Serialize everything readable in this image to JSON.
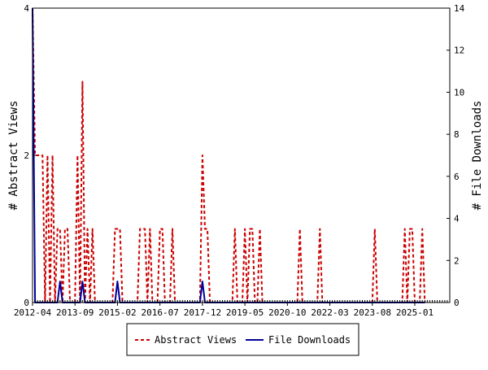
{
  "chart_data": {
    "type": "line",
    "title": "",
    "y_left_label": "# Abstract Views",
    "y_right_label": "# File Downloads",
    "y_left_ylim": [
      0,
      4
    ],
    "y_right_ylim": [
      0,
      14
    ],
    "y_left_ticks": [
      "0",
      "2",
      "4"
    ],
    "y_right_ticks": [
      "0",
      "2",
      "4",
      "6",
      "8",
      "10",
      "12",
      "14"
    ],
    "x_range": [
      "2012-04",
      "2026-03"
    ],
    "x_ticks": [
      "2012-04",
      "2013-09",
      "2015-02",
      "2016-07",
      "2017-12",
      "2019-05",
      "2020-10",
      "2022-03",
      "2023-08",
      "2025-01"
    ],
    "legend_position": "bottom",
    "series": [
      {
        "name": "Abstract Views",
        "color": "#cc0000",
        "style": "dashed",
        "axis": "left",
        "points": [
          [
            "2012-04",
            4
          ],
          [
            "2012-05",
            2
          ],
          [
            "2012-06",
            2
          ],
          [
            "2012-07",
            2
          ],
          [
            "2012-08",
            2
          ],
          [
            "2012-09",
            0
          ],
          [
            "2012-10",
            2
          ],
          [
            "2012-11",
            0
          ],
          [
            "2012-12",
            2
          ],
          [
            "2013-01",
            0
          ],
          [
            "2013-02",
            1
          ],
          [
            "2013-03",
            1
          ],
          [
            "2013-04",
            0
          ],
          [
            "2013-05",
            1
          ],
          [
            "2013-06",
            1
          ],
          [
            "2013-07",
            0
          ],
          [
            "2013-08",
            0
          ],
          [
            "2013-09",
            0
          ],
          [
            "2013-10",
            2
          ],
          [
            "2013-11",
            0
          ],
          [
            "2013-12",
            3
          ],
          [
            "2014-01",
            0
          ],
          [
            "2014-02",
            1
          ],
          [
            "2014-03",
            0
          ],
          [
            "2014-04",
            1
          ],
          [
            "2014-05",
            0
          ],
          [
            "2014-06",
            0
          ],
          [
            "2014-07",
            0
          ],
          [
            "2014-08",
            0
          ],
          [
            "2014-09",
            0
          ],
          [
            "2014-10",
            0
          ],
          [
            "2014-11",
            0
          ],
          [
            "2014-12",
            0
          ],
          [
            "2015-01",
            1
          ],
          [
            "2015-02",
            1
          ],
          [
            "2015-03",
            1
          ],
          [
            "2015-04",
            0
          ],
          [
            "2015-05",
            0
          ],
          [
            "2015-06",
            0
          ],
          [
            "2015-07",
            0
          ],
          [
            "2015-08",
            0
          ],
          [
            "2015-09",
            0
          ],
          [
            "2015-10",
            0
          ],
          [
            "2015-11",
            1
          ],
          [
            "2015-12",
            1
          ],
          [
            "2016-01",
            1
          ],
          [
            "2016-02",
            0
          ],
          [
            "2016-03",
            1
          ],
          [
            "2016-04",
            0
          ],
          [
            "2016-05",
            0
          ],
          [
            "2016-06",
            0
          ],
          [
            "2016-07",
            1
          ],
          [
            "2016-08",
            1
          ],
          [
            "2016-09",
            0
          ],
          [
            "2016-10",
            0
          ],
          [
            "2016-11",
            0
          ],
          [
            "2016-12",
            1
          ],
          [
            "2017-01",
            0
          ],
          [
            "2017-02",
            0
          ],
          [
            "2017-03",
            0
          ],
          [
            "2017-04",
            0
          ],
          [
            "2017-05",
            0
          ],
          [
            "2017-06",
            0
          ],
          [
            "2017-07",
            0
          ],
          [
            "2017-08",
            0
          ],
          [
            "2017-09",
            0
          ],
          [
            "2017-10",
            0
          ],
          [
            "2017-11",
            0
          ],
          [
            "2017-12",
            2
          ],
          [
            "2018-01",
            1
          ],
          [
            "2018-02",
            1
          ],
          [
            "2018-03",
            0
          ],
          [
            "2018-04",
            0
          ],
          [
            "2018-05",
            0
          ],
          [
            "2018-06",
            0
          ],
          [
            "2018-07",
            0
          ],
          [
            "2018-08",
            0
          ],
          [
            "2018-09",
            0
          ],
          [
            "2018-10",
            0
          ],
          [
            "2018-11",
            0
          ],
          [
            "2018-12",
            0
          ],
          [
            "2019-01",
            1
          ],
          [
            "2019-02",
            0
          ],
          [
            "2019-03",
            0
          ],
          [
            "2019-04",
            0
          ],
          [
            "2019-05",
            1
          ],
          [
            "2019-06",
            0
          ],
          [
            "2019-07",
            1
          ],
          [
            "2019-08",
            1
          ],
          [
            "2019-09",
            0
          ],
          [
            "2019-10",
            0
          ],
          [
            "2019-11",
            1
          ],
          [
            "2019-12",
            0
          ],
          [
            "2020-01",
            0
          ],
          [
            "2020-02",
            0
          ],
          [
            "2020-03",
            0
          ],
          [
            "2020-04",
            0
          ],
          [
            "2020-05",
            0
          ],
          [
            "2020-06",
            0
          ],
          [
            "2020-07",
            0
          ],
          [
            "2020-08",
            0
          ],
          [
            "2020-09",
            0
          ],
          [
            "2020-10",
            0
          ],
          [
            "2020-11",
            0
          ],
          [
            "2020-12",
            0
          ],
          [
            "2021-01",
            0
          ],
          [
            "2021-02",
            0
          ],
          [
            "2021-03",
            1
          ],
          [
            "2021-04",
            0
          ],
          [
            "2021-05",
            0
          ],
          [
            "2021-06",
            0
          ],
          [
            "2021-07",
            0
          ],
          [
            "2021-08",
            0
          ],
          [
            "2021-09",
            0
          ],
          [
            "2021-10",
            0
          ],
          [
            "2021-11",
            1
          ],
          [
            "2021-12",
            0
          ],
          [
            "2022-01",
            0
          ],
          [
            "2022-02",
            0
          ],
          [
            "2022-03",
            0
          ],
          [
            "2022-04",
            0
          ],
          [
            "2022-05",
            0
          ],
          [
            "2022-06",
            0
          ],
          [
            "2022-07",
            0
          ],
          [
            "2022-08",
            0
          ],
          [
            "2022-09",
            0
          ],
          [
            "2022-10",
            0
          ],
          [
            "2022-11",
            0
          ],
          [
            "2022-12",
            0
          ],
          [
            "2023-01",
            0
          ],
          [
            "2023-02",
            0
          ],
          [
            "2023-03",
            0
          ],
          [
            "2023-04",
            0
          ],
          [
            "2023-05",
            0
          ],
          [
            "2023-06",
            0
          ],
          [
            "2023-07",
            0
          ],
          [
            "2023-08",
            0
          ],
          [
            "2023-09",
            1
          ],
          [
            "2023-10",
            0
          ],
          [
            "2023-11",
            0
          ],
          [
            "2023-12",
            0
          ],
          [
            "2024-01",
            0
          ],
          [
            "2024-02",
            0
          ],
          [
            "2024-03",
            0
          ],
          [
            "2024-04",
            0
          ],
          [
            "2024-05",
            0
          ],
          [
            "2024-06",
            0
          ],
          [
            "2024-07",
            0
          ],
          [
            "2024-08",
            0
          ],
          [
            "2024-09",
            1
          ],
          [
            "2024-10",
            0
          ],
          [
            "2024-11",
            1
          ],
          [
            "2024-12",
            1
          ],
          [
            "2025-01",
            0
          ],
          [
            "2025-02",
            0
          ],
          [
            "2025-03",
            0
          ],
          [
            "2025-04",
            1
          ],
          [
            "2025-05",
            0
          ]
        ]
      },
      {
        "name": "File Downloads",
        "color": "#000099",
        "style": "solid",
        "axis": "right",
        "points": [
          [
            "2012-04",
            14
          ],
          [
            "2012-05",
            0
          ],
          [
            "2012-06",
            0
          ],
          [
            "2012-07",
            0
          ],
          [
            "2012-08",
            0
          ],
          [
            "2012-09",
            0
          ],
          [
            "2012-10",
            0
          ],
          [
            "2012-11",
            0
          ],
          [
            "2012-12",
            0
          ],
          [
            "2013-01",
            0
          ],
          [
            "2013-02",
            0
          ],
          [
            "2013-03",
            1
          ],
          [
            "2013-04",
            0
          ],
          [
            "2013-05",
            0
          ],
          [
            "2013-06",
            0
          ],
          [
            "2013-07",
            0
          ],
          [
            "2013-08",
            0
          ],
          [
            "2013-09",
            0
          ],
          [
            "2013-10",
            0
          ],
          [
            "2013-11",
            0
          ],
          [
            "2013-12",
            1
          ],
          [
            "2014-01",
            0
          ],
          [
            "2014-02",
            0
          ],
          [
            "2014-03",
            0
          ],
          [
            "2014-04",
            0
          ],
          [
            "2014-05",
            0
          ],
          [
            "2014-06",
            0
          ],
          [
            "2014-07",
            0
          ],
          [
            "2014-08",
            0
          ],
          [
            "2014-09",
            0
          ],
          [
            "2014-10",
            0
          ],
          [
            "2014-11",
            0
          ],
          [
            "2014-12",
            0
          ],
          [
            "2015-01",
            0
          ],
          [
            "2015-02",
            1
          ],
          [
            "2015-03",
            0
          ],
          [
            "2015-04",
            0
          ],
          [
            "2015-05",
            0
          ],
          [
            "2015-06",
            0
          ],
          [
            "2015-07",
            0
          ],
          [
            "2015-08",
            0
          ],
          [
            "2015-09",
            0
          ],
          [
            "2015-10",
            0
          ],
          [
            "2015-11",
            0
          ],
          [
            "2015-12",
            0
          ],
          [
            "2016-01",
            0
          ],
          [
            "2016-02",
            0
          ],
          [
            "2016-03",
            0
          ],
          [
            "2016-04",
            0
          ],
          [
            "2016-05",
            0
          ],
          [
            "2016-06",
            0
          ],
          [
            "2016-07",
            0
          ],
          [
            "2016-08",
            0
          ],
          [
            "2016-09",
            0
          ],
          [
            "2016-10",
            0
          ],
          [
            "2016-11",
            0
          ],
          [
            "2016-12",
            0
          ],
          [
            "2017-01",
            0
          ],
          [
            "2017-02",
            0
          ],
          [
            "2017-03",
            0
          ],
          [
            "2017-04",
            0
          ],
          [
            "2017-05",
            0
          ],
          [
            "2017-06",
            0
          ],
          [
            "2017-07",
            0
          ],
          [
            "2017-08",
            0
          ],
          [
            "2017-09",
            0
          ],
          [
            "2017-10",
            0
          ],
          [
            "2017-11",
            0
          ],
          [
            "2017-12",
            1
          ],
          [
            "2018-01",
            0
          ],
          [
            "2018-02",
            0
          ],
          [
            "2018-03",
            0
          ],
          [
            "2025-05",
            0
          ]
        ]
      }
    ]
  }
}
